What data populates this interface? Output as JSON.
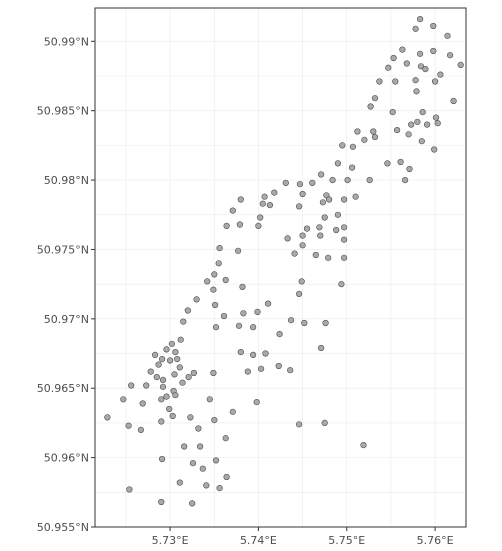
{
  "chart_data": {
    "type": "scatter",
    "title": "",
    "xlabel": "",
    "ylabel": "",
    "xlim": [
      5.7215,
      5.7635
    ],
    "ylim": [
      50.955,
      50.9924
    ],
    "grid": true,
    "point_color": "#a9a9a9",
    "point_stroke": "#4a4a4a",
    "x_ticks": [
      {
        "value": 5.73,
        "label": "5.73°E"
      },
      {
        "value": 5.74,
        "label": "5.74°E"
      },
      {
        "value": 5.75,
        "label": "5.75°E"
      },
      {
        "value": 5.76,
        "label": "5.76°E"
      }
    ],
    "y_ticks": [
      {
        "value": 50.955,
        "label": "50.955°N"
      },
      {
        "value": 50.96,
        "label": "50.96°N"
      },
      {
        "value": 50.965,
        "label": "50.965°N"
      },
      {
        "value": 50.97,
        "label": "50.97°N"
      },
      {
        "value": 50.975,
        "label": "50.975°N"
      },
      {
        "value": 50.98,
        "label": "50.98°N"
      },
      {
        "value": 50.985,
        "label": "50.985°N"
      },
      {
        "value": 50.99,
        "label": "50.99°N"
      }
    ],
    "points": [
      [
        5.7583,
        50.9916
      ],
      [
        5.7578,
        50.9909
      ],
      [
        5.7598,
        50.9911
      ],
      [
        5.7614,
        50.9904
      ],
      [
        5.7563,
        50.9894
      ],
      [
        5.7583,
        50.9891
      ],
      [
        5.7598,
        50.9893
      ],
      [
        5.7617,
        50.989
      ],
      [
        5.7629,
        50.9883
      ],
      [
        5.7553,
        50.9888
      ],
      [
        5.7547,
        50.9881
      ],
      [
        5.7568,
        50.9884
      ],
      [
        5.7584,
        50.9882
      ],
      [
        5.7589,
        50.988
      ],
      [
        5.7606,
        50.9876
      ],
      [
        5.76,
        50.9871
      ],
      [
        5.7537,
        50.9871
      ],
      [
        5.7555,
        50.9871
      ],
      [
        5.7578,
        50.9872
      ],
      [
        5.7579,
        50.9864
      ],
      [
        5.7532,
        50.9859
      ],
      [
        5.7621,
        50.9857
      ],
      [
        5.7527,
        50.9853
      ],
      [
        5.7552,
        50.9849
      ],
      [
        5.7586,
        50.9849
      ],
      [
        5.7601,
        50.9845
      ],
      [
        5.7573,
        50.984
      ],
      [
        5.758,
        50.9842
      ],
      [
        5.7591,
        50.984
      ],
      [
        5.7603,
        50.9841
      ],
      [
        5.753,
        50.9835
      ],
      [
        5.7512,
        50.9835
      ],
      [
        5.7532,
        50.9831
      ],
      [
        5.7557,
        50.9836
      ],
      [
        5.757,
        50.9833
      ],
      [
        5.7495,
        50.9825
      ],
      [
        5.7507,
        50.9824
      ],
      [
        5.752,
        50.9829
      ],
      [
        5.7585,
        50.9828
      ],
      [
        5.7599,
        50.9822
      ],
      [
        5.749,
        50.9812
      ],
      [
        5.7506,
        50.9809
      ],
      [
        5.7561,
        50.9813
      ],
      [
        5.7546,
        50.9812
      ],
      [
        5.7571,
        50.9808
      ],
      [
        5.7526,
        50.98
      ],
      [
        5.7484,
        50.98
      ],
      [
        5.7501,
        50.98
      ],
      [
        5.7471,
        50.9804
      ],
      [
        5.7461,
        50.9798
      ],
      [
        5.7447,
        50.9797
      ],
      [
        5.7431,
        50.9798
      ],
      [
        5.7566,
        50.98
      ],
      [
        5.7407,
        50.9788
      ],
      [
        5.7418,
        50.9791
      ],
      [
        5.738,
        50.9786
      ],
      [
        5.7405,
        50.9783
      ],
      [
        5.7413,
        50.9782
      ],
      [
        5.7477,
        50.9789
      ],
      [
        5.745,
        50.979
      ],
      [
        5.748,
        50.9786
      ],
      [
        5.7497,
        50.9786
      ],
      [
        5.751,
        50.9788
      ],
      [
        5.7446,
        50.9781
      ],
      [
        5.7473,
        50.9784
      ],
      [
        5.7371,
        50.9778
      ],
      [
        5.7402,
        50.9773
      ],
      [
        5.749,
        50.9775
      ],
      [
        5.7475,
        50.9773
      ],
      [
        5.7379,
        50.9768
      ],
      [
        5.7364,
        50.9767
      ],
      [
        5.74,
        50.9767
      ],
      [
        5.7455,
        50.9765
      ],
      [
        5.7469,
        50.9766
      ],
      [
        5.7488,
        50.9764
      ],
      [
        5.7497,
        50.9766
      ],
      [
        5.7433,
        50.9758
      ],
      [
        5.745,
        50.976
      ],
      [
        5.747,
        50.976
      ],
      [
        5.7497,
        50.9757
      ],
      [
        5.7356,
        50.9751
      ],
      [
        5.745,
        50.9753
      ],
      [
        5.7377,
        50.9749
      ],
      [
        5.7441,
        50.9747
      ],
      [
        5.7465,
        50.9746
      ],
      [
        5.7479,
        50.9744
      ],
      [
        5.7497,
        50.9744
      ],
      [
        5.7355,
        50.974
      ],
      [
        5.735,
        50.9732
      ],
      [
        5.7342,
        50.9727
      ],
      [
        5.7363,
        50.9728
      ],
      [
        5.7449,
        50.9727
      ],
      [
        5.7349,
        50.9721
      ],
      [
        5.7382,
        50.9723
      ],
      [
        5.7494,
        50.9725
      ],
      [
        5.733,
        50.9714
      ],
      [
        5.7411,
        50.9711
      ],
      [
        5.7446,
        50.9718
      ],
      [
        5.7351,
        50.971
      ],
      [
        5.732,
        50.9706
      ],
      [
        5.7361,
        50.9702
      ],
      [
        5.7383,
        50.9704
      ],
      [
        5.7399,
        50.9705
      ],
      [
        5.7315,
        50.9698
      ],
      [
        5.7437,
        50.9699
      ],
      [
        5.7452,
        50.9697
      ],
      [
        5.7476,
        50.9697
      ],
      [
        5.7378,
        50.9695
      ],
      [
        5.7352,
        50.9694
      ],
      [
        5.7394,
        50.9694
      ],
      [
        5.7424,
        50.9689
      ],
      [
        5.7312,
        50.9685
      ],
      [
        5.7302,
        50.9682
      ],
      [
        5.7296,
        50.9678
      ],
      [
        5.7306,
        50.9676
      ],
      [
        5.738,
        50.9676
      ],
      [
        5.7394,
        50.9674
      ],
      [
        5.7408,
        50.9675
      ],
      [
        5.7283,
        50.9674
      ],
      [
        5.7471,
        50.9679
      ],
      [
        5.7291,
        50.9671
      ],
      [
        5.73,
        50.967
      ],
      [
        5.7308,
        50.9671
      ],
      [
        5.7287,
        50.9667
      ],
      [
        5.7423,
        50.9666
      ],
      [
        5.7436,
        50.9663
      ],
      [
        5.7311,
        50.9665
      ],
      [
        5.7403,
        50.9664
      ],
      [
        5.7388,
        50.9662
      ],
      [
        5.7327,
        50.9661
      ],
      [
        5.7278,
        50.9662
      ],
      [
        5.7285,
        50.9658
      ],
      [
        5.7305,
        50.966
      ],
      [
        5.7292,
        50.9656
      ],
      [
        5.7321,
        50.9658
      ],
      [
        5.7349,
        50.9661
      ],
      [
        5.7273,
        50.9652
      ],
      [
        5.7314,
        50.9654
      ],
      [
        5.7292,
        50.9651
      ],
      [
        5.7256,
        50.9652
      ],
      [
        5.7304,
        50.9648
      ],
      [
        5.7296,
        50.9644
      ],
      [
        5.7306,
        50.9645
      ],
      [
        5.729,
        50.9642
      ],
      [
        5.7247,
        50.9642
      ],
      [
        5.7345,
        50.9642
      ],
      [
        5.7398,
        50.964
      ],
      [
        5.7269,
        50.9639
      ],
      [
        5.7299,
        50.9635
      ],
      [
        5.7371,
        50.9633
      ],
      [
        5.7303,
        50.963
      ],
      [
        5.7229,
        50.9629
      ],
      [
        5.729,
        50.9626
      ],
      [
        5.7323,
        50.9629
      ],
      [
        5.735,
        50.9627
      ],
      [
        5.7332,
        50.9621
      ],
      [
        5.7475,
        50.9625
      ],
      [
        5.7446,
        50.9624
      ],
      [
        5.7253,
        50.9623
      ],
      [
        5.7267,
        50.962
      ],
      [
        5.7363,
        50.9614
      ],
      [
        5.7519,
        50.9609
      ],
      [
        5.7316,
        50.9608
      ],
      [
        5.7334,
        50.9608
      ],
      [
        5.7291,
        50.9599
      ],
      [
        5.7326,
        50.9596
      ],
      [
        5.7352,
        50.9598
      ],
      [
        5.7337,
        50.9592
      ],
      [
        5.7364,
        50.9586
      ],
      [
        5.7311,
        50.9582
      ],
      [
        5.7341,
        50.958
      ],
      [
        5.7356,
        50.9578
      ],
      [
        5.7254,
        50.9577
      ],
      [
        5.729,
        50.9568
      ],
      [
        5.7325,
        50.9567
      ]
    ]
  }
}
